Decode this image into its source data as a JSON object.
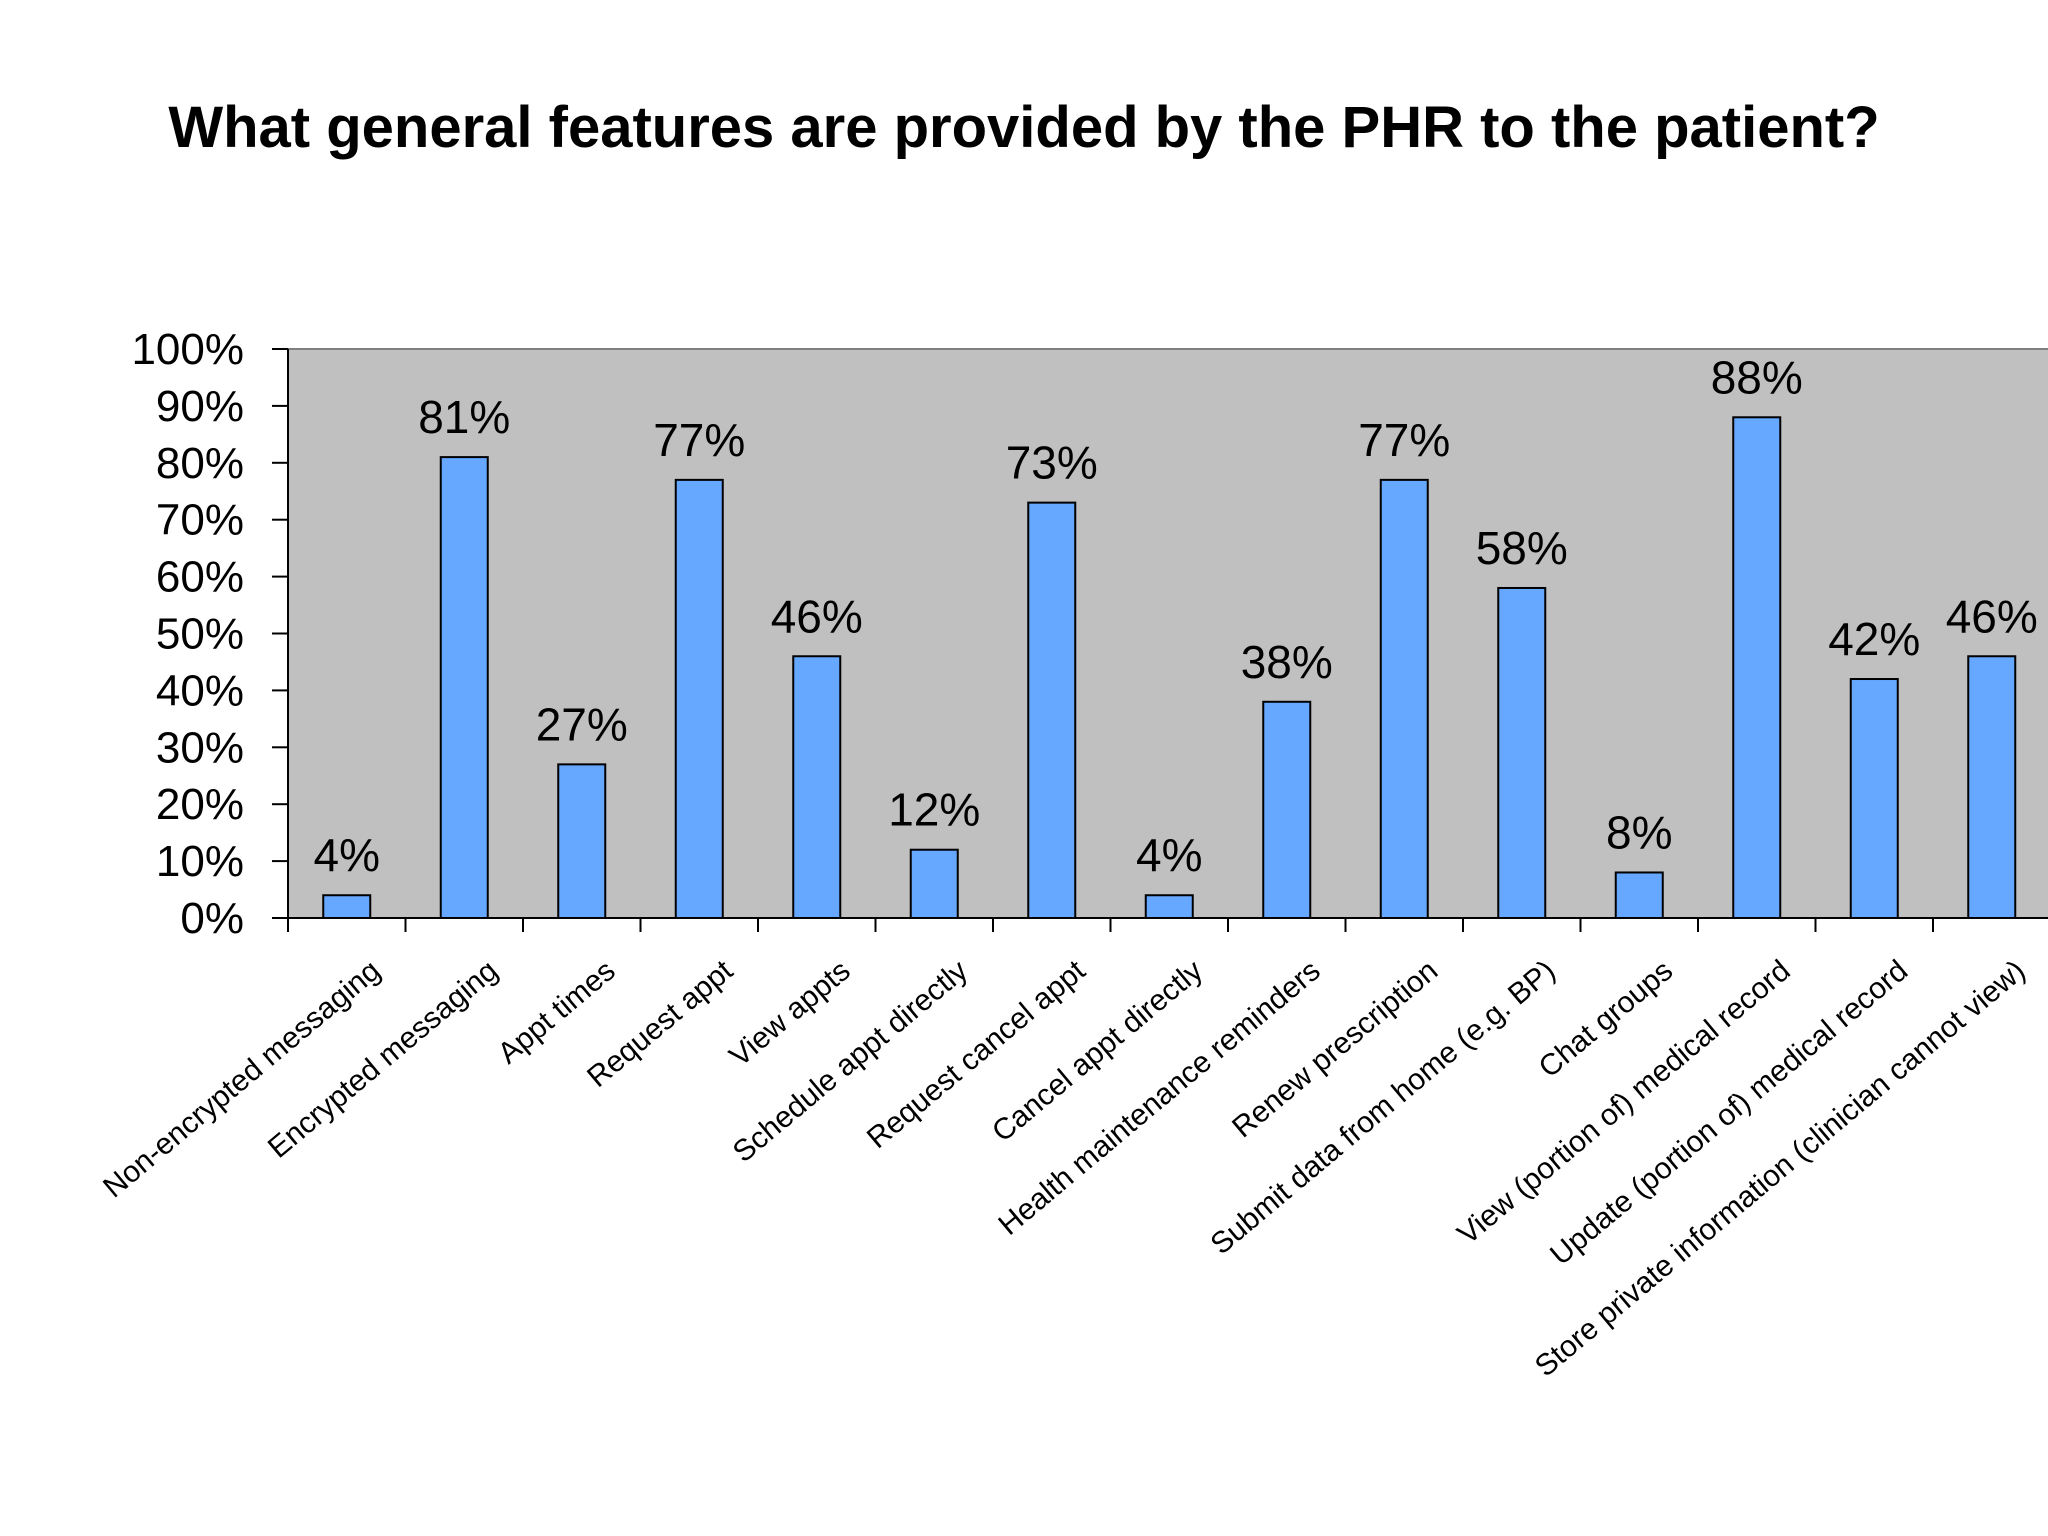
{
  "chart_data": {
    "type": "bar",
    "title": "What general features are provided by the PHR to the patient?",
    "xlabel": "",
    "ylabel": "",
    "ylim": [
      0,
      1
    ],
    "y_ticks": [
      "0%",
      "10%",
      "20%",
      "30%",
      "40%",
      "50%",
      "60%",
      "70%",
      "80%",
      "90%",
      "100%"
    ],
    "grid": false,
    "legend": "none",
    "categories": [
      "Non-encrypted messaging",
      "Encrypted messaging",
      "Appt times",
      "Request appt",
      "View appts",
      "Schedule appt directly",
      "Request cancel appt",
      "Cancel appt directly",
      "Health maintenance reminders",
      "Renew prescription",
      "Submit data from home (e.g. BP)",
      "Chat groups",
      "View (portion of) medical record",
      "Update (portion of) medical record",
      "Store private information (clinician cannot view)"
    ],
    "values": [
      0.04,
      0.81,
      0.27,
      0.77,
      0.46,
      0.12,
      0.73,
      0.04,
      0.38,
      0.77,
      0.58,
      0.08,
      0.88,
      0.42,
      0.46
    ],
    "data_labels": [
      "4%",
      "81%",
      "27%",
      "77%",
      "46%",
      "12%",
      "73%",
      "4%",
      "38%",
      "77%",
      "58%",
      "8%",
      "88%",
      "42%",
      "46%"
    ],
    "colors": {
      "bar": "#66a8ff",
      "plot_background": "#c0c0c0",
      "axis": "#000000"
    }
  }
}
